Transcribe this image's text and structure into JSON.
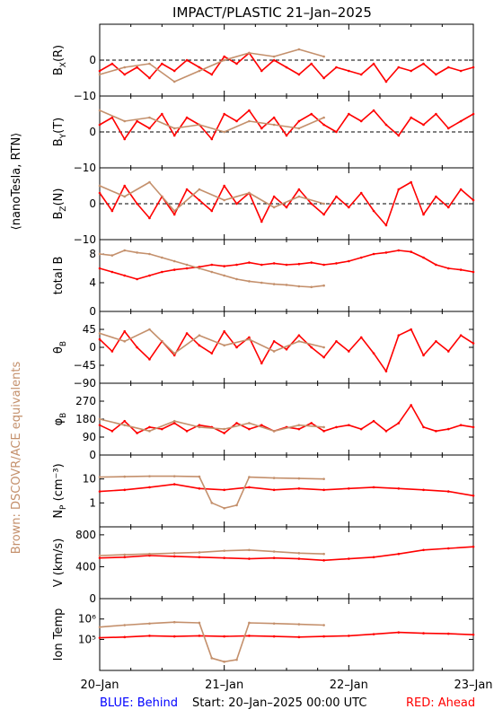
{
  "title": "IMPACT/PLASTIC   21–Jan–2025",
  "left_label": "⟨nanoTesla, RTN⟩",
  "side_note": "Brown: DSCOVR/ACE equivalents",
  "footer": {
    "behind": "BLUE: Behind",
    "start": "Start: 20–Jan–2025 00:00 UTC",
    "ahead": "RED: Ahead"
  },
  "colors": {
    "ahead": "#ff0000",
    "equivalent": "#c4906c",
    "behind": "#0000ff",
    "side_note": "#c4906c",
    "zero_line": "#000000"
  },
  "chart_data": {
    "type": "line",
    "x_range_days": [
      0,
      3
    ],
    "x_ticks": [
      {
        "day": 0,
        "label": "20–Jan"
      },
      {
        "day": 1,
        "label": "21–Jan"
      },
      {
        "day": 2,
        "label": "22–Jan"
      },
      {
        "day": 3,
        "label": "23–Jan"
      }
    ],
    "panels": [
      {
        "id": "bx",
        "ylabel": "B_X(R)",
        "ylim": [
          -10,
          10
        ],
        "zero_line": true,
        "ticks": [
          {
            "v": 0,
            "label": "0"
          },
          {
            "v": -10,
            "label": "−10"
          }
        ],
        "series": [
          {
            "color": "ahead",
            "x": [
              0,
              0.1,
              0.2,
              0.3,
              0.4,
              0.5,
              0.6,
              0.7,
              0.8,
              0.9,
              1.0,
              1.1,
              1.2,
              1.3,
              1.4,
              1.5,
              1.6,
              1.7,
              1.8,
              1.9,
              2.0,
              2.1,
              2.2,
              2.3,
              2.4,
              2.5,
              2.6,
              2.7,
              2.8,
              2.9,
              3.0
            ],
            "y": [
              -3,
              -1,
              -4,
              -2,
              -5,
              -1,
              -3,
              0,
              -2,
              -4,
              1,
              -1,
              2,
              -3,
              0,
              -2,
              -4,
              -1,
              -5,
              -2,
              -3,
              -4,
              -1,
              -6,
              -2,
              -3,
              -1,
              -4,
              -2,
              -3,
              -2
            ]
          },
          {
            "color": "equivalent",
            "x": [
              0,
              0.2,
              0.4,
              0.6,
              0.8,
              1.0,
              1.2,
              1.4,
              1.6,
              1.8
            ],
            "y": [
              -4,
              -2,
              -1,
              -6,
              -3,
              0,
              2,
              1,
              3,
              1
            ]
          }
        ]
      },
      {
        "id": "by",
        "ylabel": "B_Y(T)",
        "ylim": [
          -10,
          10
        ],
        "zero_line": true,
        "ticks": [
          {
            "v": 0,
            "label": "0"
          },
          {
            "v": -10,
            "label": "−10"
          }
        ],
        "series": [
          {
            "color": "ahead",
            "x": [
              0,
              0.1,
              0.2,
              0.3,
              0.4,
              0.5,
              0.6,
              0.7,
              0.8,
              0.9,
              1.0,
              1.1,
              1.2,
              1.3,
              1.4,
              1.5,
              1.6,
              1.7,
              1.8,
              1.9,
              2.0,
              2.1,
              2.2,
              2.3,
              2.4,
              2.5,
              2.6,
              2.7,
              2.8,
              2.9,
              3.0
            ],
            "y": [
              2,
              4,
              -2,
              3,
              1,
              5,
              -1,
              4,
              2,
              -2,
              5,
              3,
              6,
              1,
              4,
              -1,
              3,
              5,
              2,
              0,
              5,
              3,
              6,
              2,
              -1,
              4,
              2,
              5,
              1,
              3,
              5
            ]
          },
          {
            "color": "equivalent",
            "x": [
              0,
              0.2,
              0.4,
              0.6,
              0.8,
              1.0,
              1.2,
              1.4,
              1.6,
              1.8
            ],
            "y": [
              6,
              3,
              4,
              1,
              2,
              0,
              3,
              2,
              1,
              4
            ]
          }
        ]
      },
      {
        "id": "bz",
        "ylabel": "B_Z(N)",
        "ylim": [
          -10,
          10
        ],
        "zero_line": true,
        "ticks": [
          {
            "v": 0,
            "label": "0"
          },
          {
            "v": -10,
            "label": "−10"
          }
        ],
        "series": [
          {
            "color": "ahead",
            "x": [
              0,
              0.1,
              0.2,
              0.3,
              0.4,
              0.5,
              0.6,
              0.7,
              0.8,
              0.9,
              1.0,
              1.1,
              1.2,
              1.3,
              1.4,
              1.5,
              1.6,
              1.7,
              1.8,
              1.9,
              2.0,
              2.1,
              2.2,
              2.3,
              2.4,
              2.5,
              2.6,
              2.7,
              2.8,
              2.9,
              3.0
            ],
            "y": [
              3,
              -2,
              5,
              0,
              -4,
              2,
              -3,
              4,
              1,
              -2,
              5,
              0,
              3,
              -5,
              2,
              -1,
              4,
              0,
              -3,
              2,
              -1,
              3,
              -2,
              -6,
              4,
              6,
              -3,
              2,
              -1,
              4,
              1
            ]
          },
          {
            "color": "equivalent",
            "x": [
              0,
              0.2,
              0.4,
              0.6,
              0.8,
              1.0,
              1.2,
              1.4,
              1.6,
              1.8
            ],
            "y": [
              5,
              2,
              6,
              -2,
              4,
              1,
              3,
              -1,
              2,
              0
            ]
          }
        ]
      },
      {
        "id": "btot",
        "ylabel": "total B",
        "ylim": [
          0,
          10
        ],
        "zero_line": false,
        "ticks": [
          {
            "v": 0,
            "label": "0"
          },
          {
            "v": 4,
            "label": "4"
          },
          {
            "v": 8,
            "label": "8"
          }
        ],
        "series": [
          {
            "color": "ahead",
            "x": [
              0,
              0.1,
              0.2,
              0.3,
              0.4,
              0.5,
              0.6,
              0.7,
              0.8,
              0.9,
              1.0,
              1.1,
              1.2,
              1.3,
              1.4,
              1.5,
              1.6,
              1.7,
              1.8,
              1.9,
              2.0,
              2.1,
              2.2,
              2.3,
              2.4,
              2.5,
              2.6,
              2.7,
              2.8,
              2.9,
              3.0
            ],
            "y": [
              6,
              5.5,
              5,
              4.5,
              5,
              5.5,
              5.8,
              6,
              6.2,
              6.5,
              6.3,
              6.5,
              6.8,
              6.5,
              6.7,
              6.5,
              6.6,
              6.8,
              6.5,
              6.7,
              7,
              7.5,
              8,
              8.2,
              8.5,
              8.3,
              7.5,
              6.5,
              6,
              5.8,
              5.5
            ]
          },
          {
            "color": "equivalent",
            "x": [
              0,
              0.1,
              0.2,
              0.3,
              0.4,
              0.5,
              0.6,
              0.7,
              0.8,
              0.9,
              1.0,
              1.1,
              1.2,
              1.3,
              1.4,
              1.5,
              1.6,
              1.7,
              1.8
            ],
            "y": [
              8,
              7.8,
              8.5,
              8.2,
              8,
              7.5,
              7,
              6.5,
              6,
              5.5,
              5,
              4.5,
              4.2,
              4,
              3.8,
              3.7,
              3.5,
              3.4,
              3.6
            ]
          }
        ]
      },
      {
        "id": "theta",
        "ylabel": "θ_B",
        "ylim": [
          -90,
          90
        ],
        "zero_line": false,
        "ticks": [
          {
            "v": 45,
            "label": "45"
          },
          {
            "v": 0,
            "label": "0"
          },
          {
            "v": -45,
            "label": "−45"
          },
          {
            "v": -90,
            "label": "−90"
          }
        ],
        "series": [
          {
            "color": "ahead",
            "x": [
              0,
              0.1,
              0.2,
              0.3,
              0.4,
              0.5,
              0.6,
              0.7,
              0.8,
              0.9,
              1.0,
              1.1,
              1.2,
              1.3,
              1.4,
              1.5,
              1.6,
              1.7,
              1.8,
              1.9,
              2.0,
              2.1,
              2.2,
              2.3,
              2.4,
              2.5,
              2.6,
              2.7,
              2.8,
              2.9,
              3.0
            ],
            "y": [
              20,
              -10,
              40,
              0,
              -30,
              15,
              -20,
              35,
              5,
              -15,
              40,
              0,
              25,
              -40,
              15,
              -5,
              30,
              0,
              -25,
              15,
              -10,
              25,
              -15,
              -60,
              30,
              45,
              -20,
              15,
              -10,
              30,
              10
            ]
          },
          {
            "color": "equivalent",
            "x": [
              0,
              0.2,
              0.4,
              0.6,
              0.8,
              1.0,
              1.2,
              1.4,
              1.6,
              1.8
            ],
            "y": [
              35,
              15,
              45,
              -15,
              30,
              5,
              20,
              -10,
              15,
              0
            ]
          }
        ]
      },
      {
        "id": "phi",
        "ylabel": "φ_B",
        "ylim": [
          0,
          360
        ],
        "zero_line": false,
        "ticks": [
          {
            "v": 270,
            "label": "270"
          },
          {
            "v": 180,
            "label": "180"
          },
          {
            "v": 90,
            "label": "90"
          },
          {
            "v": 0,
            "label": "0"
          }
        ],
        "series": [
          {
            "color": "ahead",
            "x": [
              0,
              0.1,
              0.2,
              0.3,
              0.4,
              0.5,
              0.6,
              0.7,
              0.8,
              0.9,
              1.0,
              1.1,
              1.2,
              1.3,
              1.4,
              1.5,
              1.6,
              1.7,
              1.8,
              1.9,
              2.0,
              2.1,
              2.2,
              2.3,
              2.4,
              2.5,
              2.6,
              2.7,
              2.8,
              2.9,
              3.0
            ],
            "y": [
              150,
              120,
              170,
              110,
              140,
              130,
              160,
              120,
              150,
              140,
              110,
              160,
              130,
              150,
              120,
              140,
              130,
              160,
              120,
              140,
              150,
              130,
              170,
              120,
              160,
              250,
              140,
              120,
              130,
              150,
              140
            ]
          },
          {
            "color": "equivalent",
            "x": [
              0,
              0.2,
              0.4,
              0.6,
              0.8,
              1.0,
              1.2,
              1.4,
              1.6,
              1.8
            ],
            "y": [
              180,
              150,
              120,
              170,
              140,
              130,
              160,
              120,
              150,
              140
            ]
          }
        ]
      },
      {
        "id": "np",
        "ylabel": "N_P (cm⁻³)",
        "ylim": [
          0.1,
          100
        ],
        "log": true,
        "zero_line": false,
        "ticks": [
          {
            "v": 10,
            "label": "10"
          },
          {
            "v": 1,
            "label": "1"
          }
        ],
        "series": [
          {
            "color": "ahead",
            "x": [
              0,
              0.2,
              0.4,
              0.6,
              0.8,
              1.0,
              1.2,
              1.4,
              1.6,
              1.8,
              2.0,
              2.2,
              2.4,
              2.6,
              2.8,
              3.0
            ],
            "y": [
              3,
              3.5,
              4.5,
              6,
              4,
              3.5,
              4.5,
              3.5,
              4,
              3.5,
              4,
              4.5,
              4,
              3.5,
              3,
              2
            ]
          },
          {
            "color": "equivalent",
            "x": [
              0,
              0.2,
              0.4,
              0.6,
              0.8,
              0.9,
              1.0,
              1.1,
              1.2,
              1.4,
              1.6,
              1.8
            ],
            "y": [
              12,
              12.5,
              13,
              13,
              12.5,
              1,
              0.6,
              0.8,
              12,
              11,
              10.5,
              10
            ]
          }
        ]
      },
      {
        "id": "v",
        "ylabel": "V (km/s)",
        "ylim": [
          0,
          900
        ],
        "zero_line": false,
        "ticks": [
          {
            "v": 800,
            "label": "800"
          },
          {
            "v": 400,
            "label": "400"
          },
          {
            "v": 0,
            "label": "0"
          }
        ],
        "series": [
          {
            "color": "ahead",
            "x": [
              0,
              0.2,
              0.4,
              0.6,
              0.8,
              1.0,
              1.2,
              1.4,
              1.6,
              1.8,
              2.0,
              2.2,
              2.4,
              2.6,
              2.8,
              3.0
            ],
            "y": [
              510,
              520,
              540,
              530,
              520,
              510,
              500,
              510,
              500,
              480,
              500,
              520,
              560,
              610,
              630,
              650
            ]
          },
          {
            "color": "equivalent",
            "x": [
              0,
              0.2,
              0.4,
              0.6,
              0.8,
              1.0,
              1.2,
              1.4,
              1.6,
              1.8
            ],
            "y": [
              540,
              550,
              560,
              570,
              580,
              600,
              610,
              590,
              570,
              560
            ]
          }
        ]
      },
      {
        "id": "temp",
        "ylabel": "Ion Temp",
        "ylim": [
          3000,
          10000000
        ],
        "log": true,
        "zero_line": false,
        "ticks": [
          {
            "v": 1000000,
            "label": "10⁶"
          },
          {
            "v": 100000,
            "label": "10⁵"
          }
        ],
        "series": [
          {
            "color": "ahead",
            "x": [
              0,
              0.2,
              0.4,
              0.6,
              0.8,
              1.0,
              1.2,
              1.4,
              1.6,
              1.8,
              2.0,
              2.2,
              2.4,
              2.6,
              2.8,
              3.0
            ],
            "y": [
              120000,
              130000,
              150000,
              140000,
              150000,
              140000,
              150000,
              140000,
              130000,
              140000,
              150000,
              180000,
              220000,
              200000,
              190000,
              170000
            ]
          },
          {
            "color": "equivalent",
            "x": [
              0,
              0.2,
              0.4,
              0.6,
              0.8,
              0.9,
              1.0,
              1.1,
              1.2,
              1.4,
              1.6,
              1.8
            ],
            "y": [
              400000,
              500000,
              600000,
              700000,
              650000,
              12000,
              8000,
              10000,
              650000,
              600000,
              550000,
              500000
            ]
          }
        ]
      }
    ]
  }
}
